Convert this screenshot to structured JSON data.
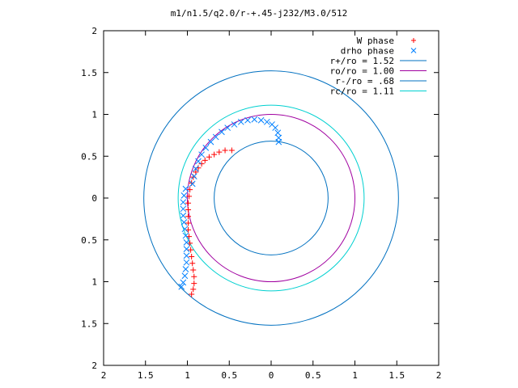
{
  "chart_data": {
    "type": "scatter",
    "title": "m1/n1.5/q2.0/r-+.45-j232/M3.0/512",
    "xlabel": "",
    "ylabel": "",
    "xlim": [
      -2,
      2
    ],
    "ylim": [
      -2,
      2
    ],
    "xtick_values": [
      -2,
      -1.5,
      -1,
      -0.5,
      0,
      0.5,
      1,
      1.5,
      2
    ],
    "xtick_labels": [
      "2",
      "1.5",
      "1",
      "0.5",
      "0",
      "0.5",
      "1",
      "1.5",
      "2"
    ],
    "ytick_values": [
      2,
      1.5,
      1,
      0.5,
      0,
      -0.5,
      -1,
      -1.5,
      -2
    ],
    "ytick_labels": [
      "2",
      "1.5",
      "1",
      "0.5",
      "0",
      "0.5",
      "1",
      "1.5",
      "2"
    ],
    "grid": false,
    "legend_position": "top-right",
    "series": [
      {
        "name": "W phase",
        "kind": "points",
        "marker": "+",
        "color": "#ff0000",
        "points": [
          [
            -0.47,
            0.57
          ],
          [
            -0.55,
            0.57
          ],
          [
            -0.62,
            0.55
          ],
          [
            -0.68,
            0.52
          ],
          [
            -0.74,
            0.49
          ],
          [
            -0.79,
            0.45
          ],
          [
            -0.83,
            0.41
          ],
          [
            -0.87,
            0.36
          ],
          [
            -0.9,
            0.31
          ],
          [
            -0.93,
            0.25
          ],
          [
            -0.95,
            0.18
          ],
          [
            -0.97,
            0.1
          ],
          [
            -0.98,
            0.02
          ],
          [
            -0.99,
            -0.06
          ],
          [
            -0.99,
            -0.14
          ],
          [
            -0.99,
            -0.22
          ],
          [
            -0.99,
            -0.3
          ],
          [
            -0.99,
            -0.38
          ],
          [
            -0.98,
            -0.46
          ],
          [
            -0.97,
            -0.54
          ],
          [
            -0.96,
            -0.62
          ],
          [
            -0.95,
            -0.7
          ],
          [
            -0.94,
            -0.78
          ],
          [
            -0.93,
            -0.86
          ],
          [
            -0.92,
            -0.94
          ],
          [
            -0.92,
            -1.02
          ],
          [
            -0.93,
            -1.09
          ],
          [
            -0.95,
            -1.15
          ]
        ]
      },
      {
        "name": "drho phase",
        "kind": "points",
        "marker": "x",
        "color": "#0080ff",
        "points": [
          [
            0.09,
            0.67
          ],
          [
            0.09,
            0.72
          ],
          [
            0.08,
            0.78
          ],
          [
            0.05,
            0.84
          ],
          [
            0.01,
            0.88
          ],
          [
            -0.05,
            0.91
          ],
          [
            -0.12,
            0.93
          ],
          [
            -0.2,
            0.94
          ],
          [
            -0.28,
            0.93
          ],
          [
            -0.36,
            0.91
          ],
          [
            -0.44,
            0.88
          ],
          [
            -0.52,
            0.84
          ],
          [
            -0.59,
            0.79
          ],
          [
            -0.66,
            0.73
          ],
          [
            -0.72,
            0.67
          ],
          [
            -0.78,
            0.6
          ],
          [
            -0.83,
            0.52
          ],
          [
            -0.87,
            0.44
          ],
          [
            -0.9,
            0.35
          ],
          [
            -0.92,
            0.26
          ],
          [
            -0.94,
            0.17
          ],
          [
            -1.02,
            0.11
          ],
          [
            -1.04,
            0.03
          ],
          [
            -1.05,
            -0.05
          ],
          [
            -1.05,
            -0.13
          ],
          [
            -1.05,
            -0.21
          ],
          [
            -1.04,
            -0.29
          ],
          [
            -1.03,
            -0.37
          ],
          [
            -1.02,
            -0.45
          ],
          [
            -1.01,
            -0.53
          ],
          [
            -1.01,
            -0.61
          ],
          [
            -1.01,
            -0.69
          ],
          [
            -1.01,
            -0.77
          ],
          [
            -1.02,
            -0.85
          ],
          [
            -1.03,
            -0.93
          ],
          [
            -1.05,
            -1.01
          ],
          [
            -1.07,
            -1.06
          ]
        ]
      },
      {
        "name": "r+/ro = 1.52",
        "kind": "circle",
        "radius": 1.52,
        "color": "#0070c0"
      },
      {
        "name": "ro/ro = 1.00",
        "kind": "circle",
        "radius": 1.0,
        "color": "#a000a0"
      },
      {
        "name": "r-/ro = .68",
        "kind": "circle",
        "radius": 0.68,
        "color": "#0070c0"
      },
      {
        "name": "rc/ro = 1.11",
        "kind": "circle",
        "radius": 1.11,
        "color": "#00d0d0"
      }
    ]
  }
}
